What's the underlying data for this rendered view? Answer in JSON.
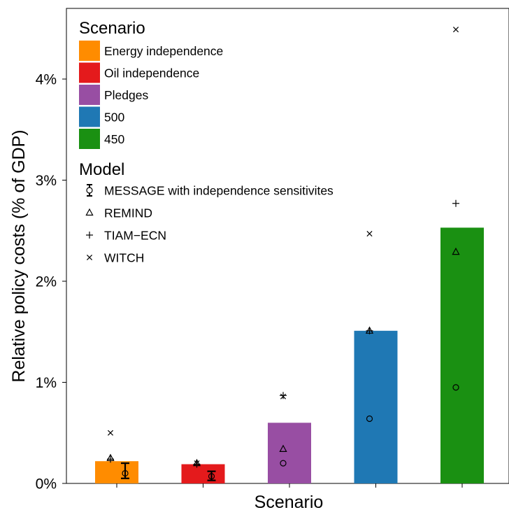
{
  "chart_data": {
    "type": "bar",
    "xlabel": "Scenario",
    "ylabel": "Relative policy costs (% of GDP)",
    "ylim": [
      0,
      4.7
    ],
    "yticks": [
      0,
      1,
      2,
      3,
      4
    ],
    "ytick_labels": [
      "0%",
      "1%",
      "2%",
      "3%",
      "4%"
    ],
    "grid": false,
    "legend_position": "top-left",
    "categories": [
      "Energy independence",
      "Oil independence",
      "Pledges",
      "500",
      "450"
    ],
    "colors": [
      "#ff8c00",
      "#e41a1c",
      "#984ea3",
      "#1f78b4",
      "#1a9012"
    ],
    "values": [
      0.22,
      0.19,
      0.6,
      1.51,
      2.53
    ],
    "message_errorbars": [
      {
        "category": "Energy independence",
        "low": 0.05,
        "high": 0.2
      },
      {
        "category": "Oil independence",
        "low": 0.03,
        "high": 0.12
      },
      {
        "category": "Pledges",
        "low": null,
        "high": null
      },
      {
        "category": "500",
        "low": null,
        "high": null
      },
      {
        "category": "450",
        "low": null,
        "high": null
      }
    ],
    "series": [
      {
        "name": "MESSAGE with independence sensitivites",
        "marker": "circle",
        "values": [
          0.1,
          0.07,
          0.2,
          0.64,
          0.95
        ]
      },
      {
        "name": "REMIND",
        "marker": "triangle",
        "values": [
          0.25,
          0.2,
          0.34,
          1.51,
          2.29
        ]
      },
      {
        "name": "TIAM−ECN",
        "marker": "plus",
        "values": [
          0.24,
          0.19,
          0.87,
          1.51,
          2.77
        ]
      },
      {
        "name": "WITCH",
        "marker": "cross",
        "values": [
          0.5,
          0.2,
          0.86,
          2.47,
          4.49
        ]
      }
    ],
    "legend": {
      "scenario_title": "Scenario",
      "model_title": "Model"
    }
  }
}
